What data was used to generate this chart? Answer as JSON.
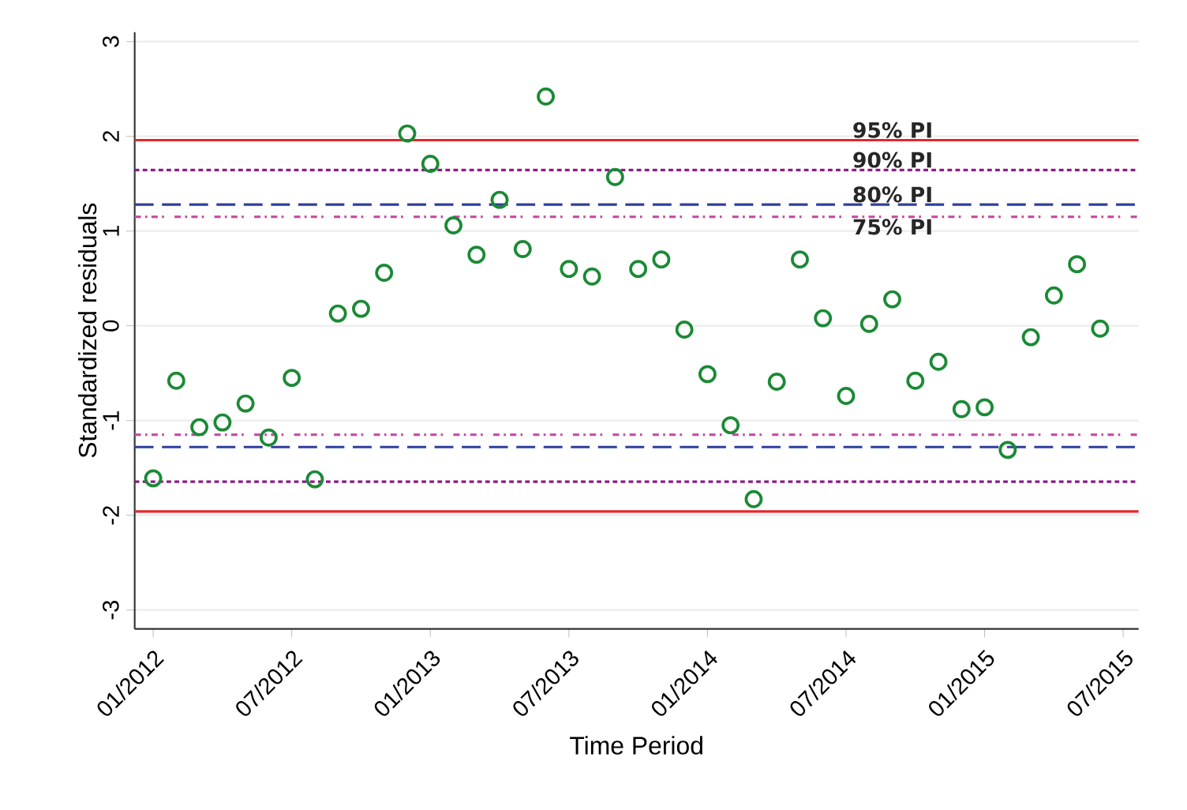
{
  "chart_data": {
    "type": "scatter",
    "xlabel": "Time Period",
    "ylabel": "Standardized residuals",
    "x": [
      "2012-01",
      "2012-02",
      "2012-03",
      "2012-04",
      "2012-05",
      "2012-06",
      "2012-07",
      "2012-08",
      "2012-09",
      "2012-10",
      "2012-11",
      "2012-12",
      "2013-01",
      "2013-02",
      "2013-03",
      "2013-04",
      "2013-05",
      "2013-06",
      "2013-07",
      "2013-08",
      "2013-09",
      "2013-10",
      "2013-11",
      "2013-12",
      "2014-01",
      "2014-02",
      "2014-03",
      "2014-04",
      "2014-05",
      "2014-06",
      "2014-07",
      "2014-08",
      "2014-09",
      "2014-10",
      "2014-11",
      "2014-12",
      "2015-01",
      "2015-02",
      "2015-03",
      "2015-04",
      "2015-05",
      "2015-06"
    ],
    "series": [
      {
        "color": "#1a8a35",
        "values": [
          -1.61,
          -0.58,
          -1.07,
          -1.02,
          -0.82,
          -1.18,
          -0.55,
          -1.62,
          0.13,
          0.18,
          0.56,
          2.03,
          1.71,
          1.06,
          0.75,
          1.33,
          0.81,
          2.42,
          0.6,
          0.52,
          1.57,
          0.6,
          0.7,
          -0.04,
          -0.51,
          -1.05,
          -1.83,
          -0.59,
          0.7,
          0.08,
          -0.74,
          0.02,
          0.28,
          -0.58,
          -0.38,
          -0.88,
          -0.86,
          -1.31,
          -0.12,
          0.32,
          0.65,
          -0.03
        ]
      }
    ],
    "marker": "circle",
    "xlim": [
      "2011-12-07",
      "2015-07-21"
    ],
    "xticks": [
      {
        "value": "2012-01",
        "label": "01/2012"
      },
      {
        "value": "2012-07",
        "label": "07/2012"
      },
      {
        "value": "2013-01",
        "label": "01/2013"
      },
      {
        "value": "2013-07",
        "label": "07/2013"
      },
      {
        "value": "2014-01",
        "label": "01/2014"
      },
      {
        "value": "2014-07",
        "label": "07/2014"
      },
      {
        "value": "2015-01",
        "label": "01/2015"
      },
      {
        "value": "2015-07",
        "label": "07/2015"
      }
    ],
    "ylim": [
      -3.2,
      3.1
    ],
    "yticks": [
      -3,
      -2,
      -1,
      0,
      1,
      2,
      3
    ],
    "grid": "y",
    "ref_lines": [
      {
        "axis": "y",
        "value": 1.96,
        "label": "95% PI",
        "color": "#e8262a",
        "line_style": "solid"
      },
      {
        "axis": "y",
        "value": 1.645,
        "label": "90% PI",
        "color": "#8b1a89",
        "line_style": "dotted"
      },
      {
        "axis": "y",
        "value": 1.28,
        "label": "80% PI",
        "color": "#2e3f9e",
        "line_style": "dashed"
      },
      {
        "axis": "y",
        "value": 1.15,
        "label": "75% PI",
        "color": "#c94fa8",
        "line_style": "dashdot"
      },
      {
        "axis": "y",
        "value": -1.15,
        "color": "#c94fa8",
        "line_style": "dashdot"
      },
      {
        "axis": "y",
        "value": -1.28,
        "color": "#2e3f9e",
        "line_style": "dashed"
      },
      {
        "axis": "y",
        "value": -1.645,
        "color": "#8b1a89",
        "line_style": "dotted"
      },
      {
        "axis": "y",
        "value": -1.96,
        "color": "#e8262a",
        "line_style": "solid"
      }
    ]
  }
}
